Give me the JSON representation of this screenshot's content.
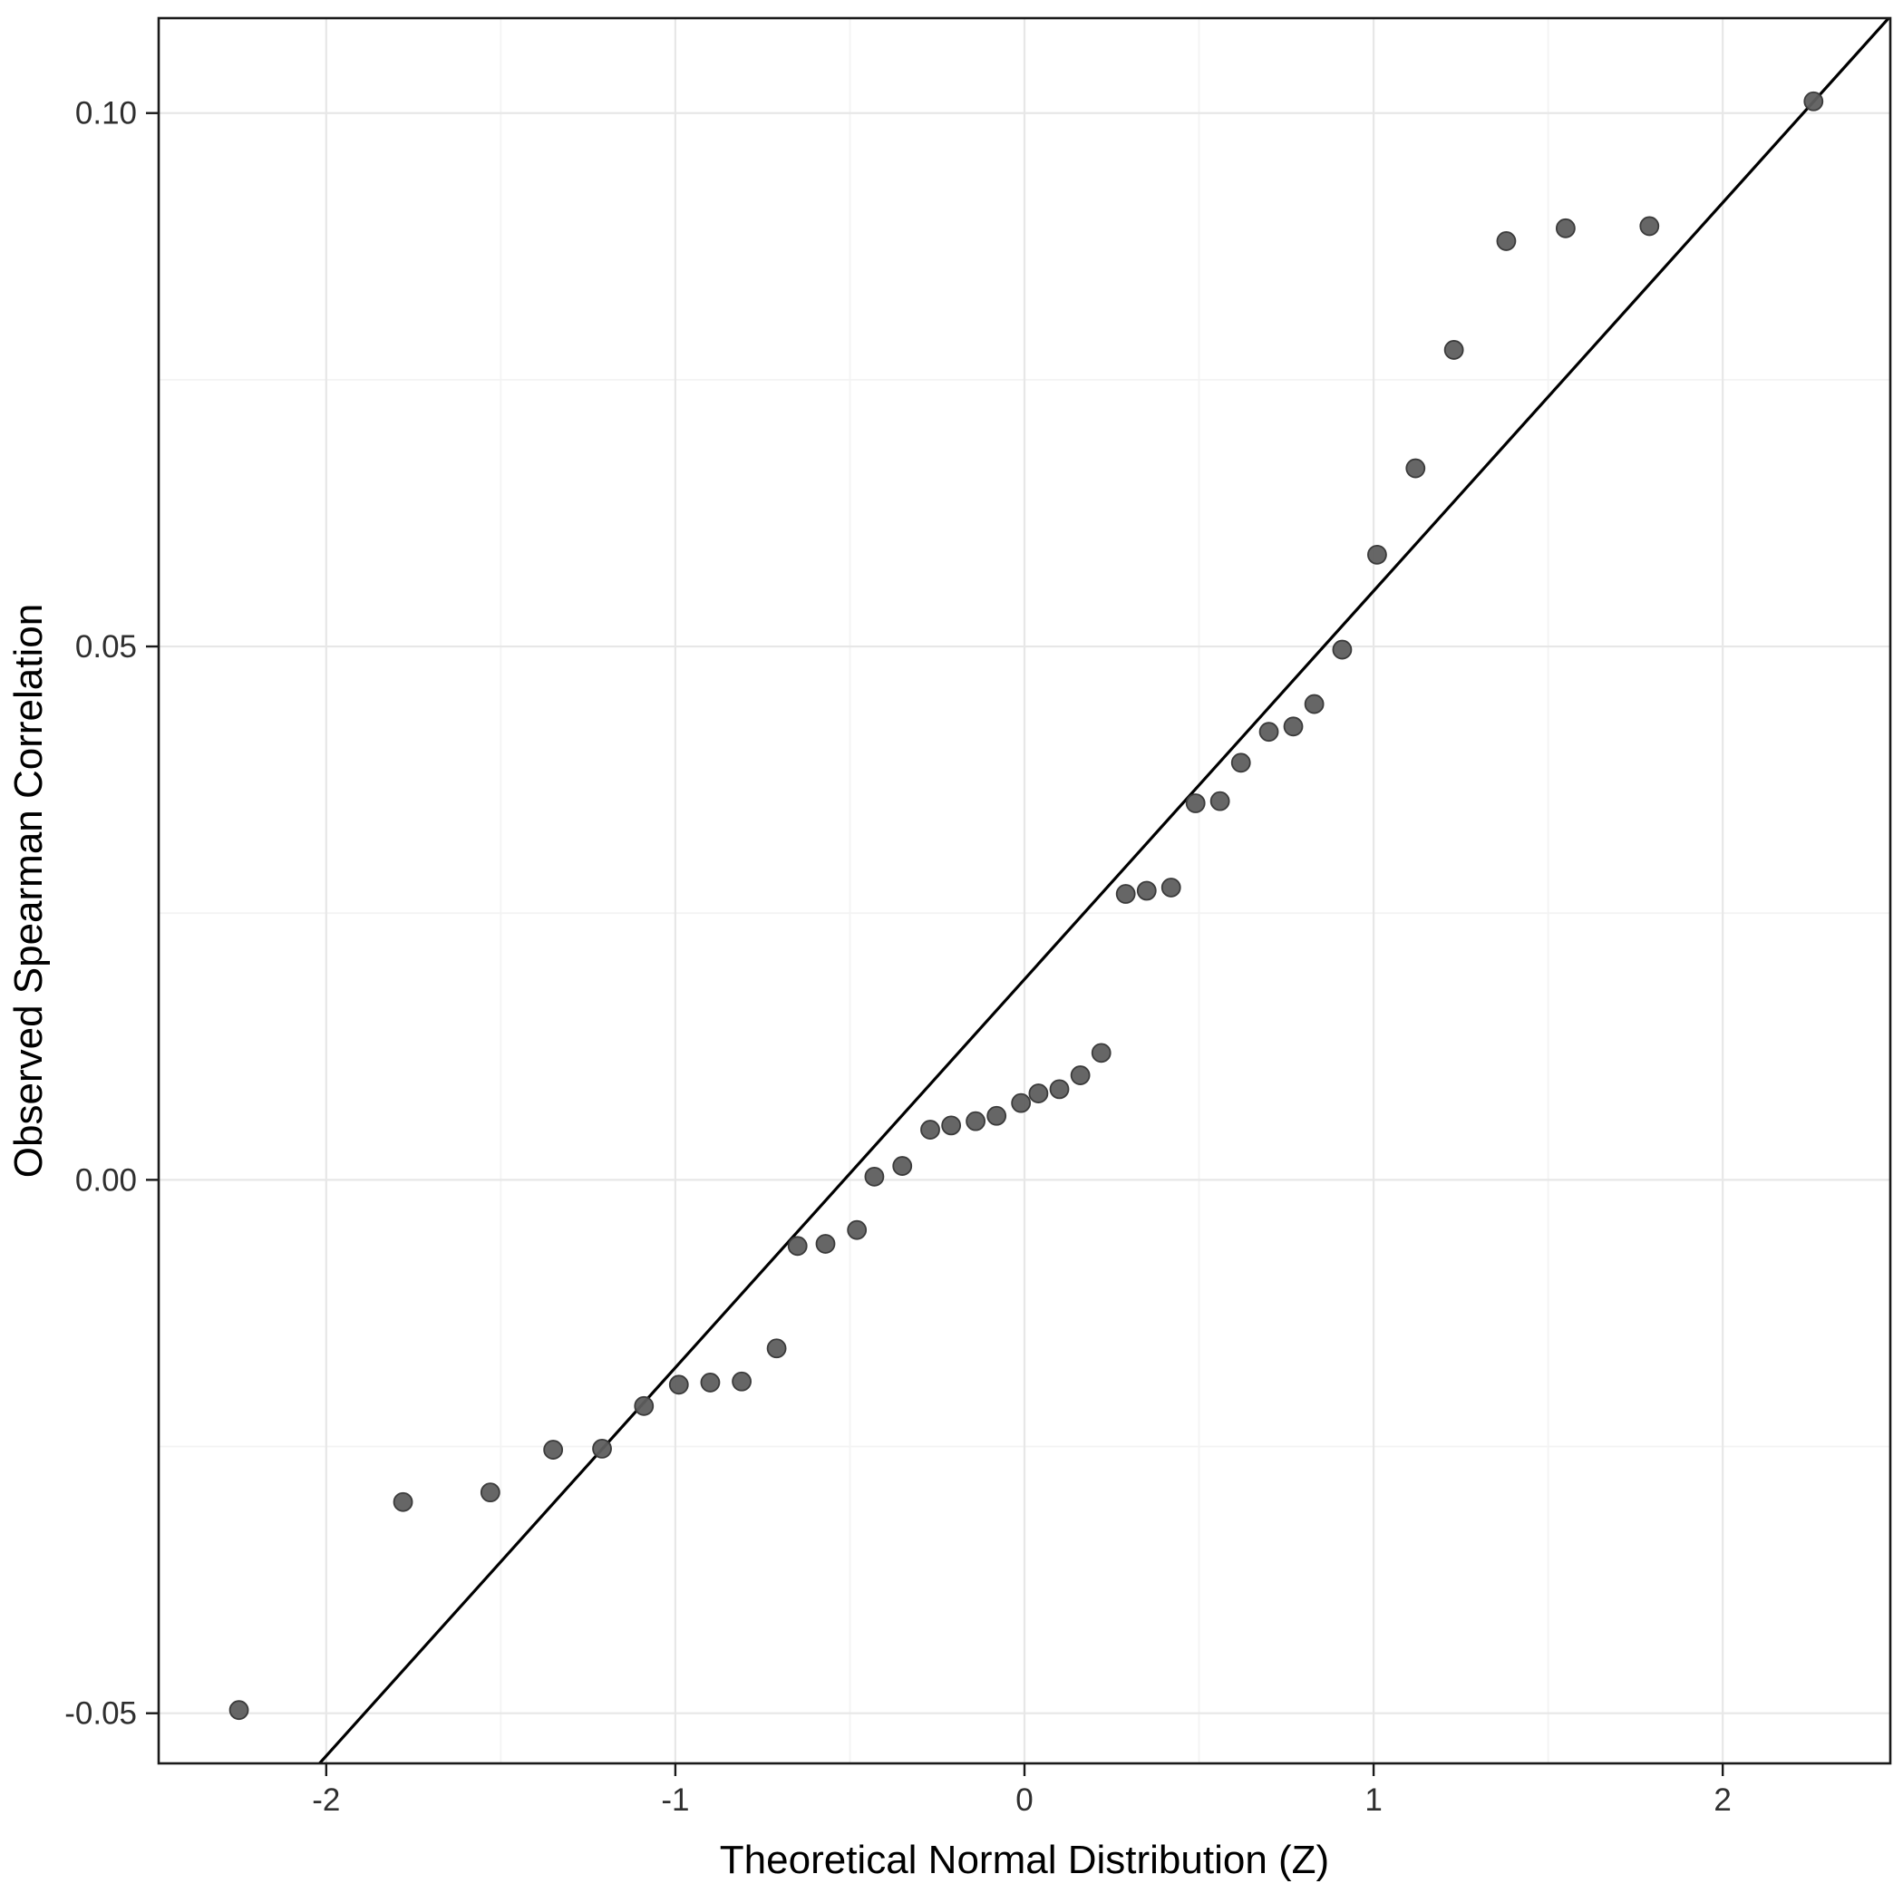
{
  "figure": {
    "background": "#ffffff"
  },
  "chart_data": {
    "type": "scatter",
    "title": "",
    "xlabel": "Theoretical Normal Distribution (Z)",
    "ylabel": "Observed Spearman Correlation",
    "xlim": [
      -2.48,
      2.48
    ],
    "ylim": [
      -0.0547,
      0.1089
    ],
    "x_ticks": [
      -2,
      -1,
      0,
      1,
      2
    ],
    "x_tick_labels": [
      "-2",
      "-1",
      "0",
      "1",
      "2"
    ],
    "y_ticks": [
      -0.05,
      0,
      0.05,
      0.1
    ],
    "y_tick_labels": [
      "-0.05",
      "0.00",
      "0.05",
      "0.10"
    ],
    "grid": "major and minor, light gray, theme_bw style",
    "legend": "none",
    "reference_line": {
      "slope": 0.0364,
      "intercept": 0.0188
    },
    "points": [
      [
        -2.25,
        -0.0497
      ],
      [
        -1.78,
        -0.0302
      ],
      [
        -1.53,
        -0.0293
      ],
      [
        -1.35,
        -0.0253
      ],
      [
        -1.21,
        -0.0252
      ],
      [
        -1.09,
        -0.0212
      ],
      [
        -0.99,
        -0.0192
      ],
      [
        -0.9,
        -0.019
      ],
      [
        -0.81,
        -0.0189
      ],
      [
        -0.71,
        -0.0158
      ],
      [
        -0.65,
        -0.0062
      ],
      [
        -0.57,
        -0.006
      ],
      [
        -0.48,
        -0.0047
      ],
      [
        -0.43,
        0.0003
      ],
      [
        -0.35,
        0.0013
      ],
      [
        -0.27,
        0.0047
      ],
      [
        -0.21,
        0.0051
      ],
      [
        -0.14,
        0.0055
      ],
      [
        -0.08,
        0.006
      ],
      [
        -0.01,
        0.0072
      ],
      [
        0.04,
        0.0081
      ],
      [
        0.1,
        0.0085
      ],
      [
        0.16,
        0.0098
      ],
      [
        0.22,
        0.0119
      ],
      [
        0.29,
        0.0268
      ],
      [
        0.35,
        0.0271
      ],
      [
        0.42,
        0.0274
      ],
      [
        0.49,
        0.0353
      ],
      [
        0.56,
        0.0355
      ],
      [
        0.62,
        0.0391
      ],
      [
        0.7,
        0.042
      ],
      [
        0.77,
        0.0425
      ],
      [
        0.83,
        0.0446
      ],
      [
        0.91,
        0.0497
      ],
      [
        1.01,
        0.0586
      ],
      [
        1.12,
        0.0667
      ],
      [
        1.23,
        0.0778
      ],
      [
        1.38,
        0.088
      ],
      [
        1.55,
        0.0892
      ],
      [
        1.79,
        0.0894
      ],
      [
        2.26,
        0.1011
      ]
    ],
    "styles": {
      "panel_bg": "#ffffff",
      "grid_major": "#e7e7e7",
      "grid_minor": "#f3f3f3",
      "panel_border": "#1a1a1a",
      "point_fill": "#5e5e5e",
      "point_stroke": "#3b3b3b",
      "reference_line_color": "#000000",
      "tick_color": "#1a1a1a",
      "tick_label_color": "#2f2f2f",
      "axis_title_color": "#000000"
    }
  }
}
